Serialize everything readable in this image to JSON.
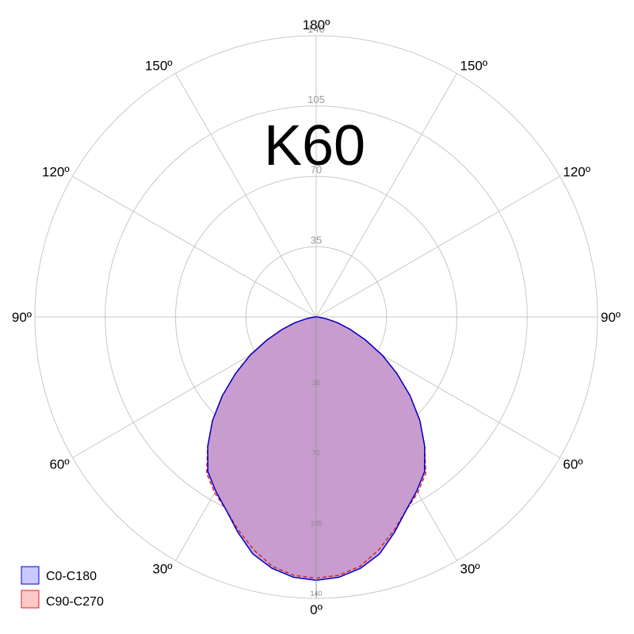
{
  "chart_data": {
    "type": "polar",
    "title": "K60",
    "rmax": 140,
    "rings": [
      35,
      70,
      105,
      140
    ],
    "angle_labels_top": [
      "180º",
      "150º",
      "150º",
      "120º",
      "120º",
      "90º",
      "90º"
    ],
    "angle_labels_bottom": [
      "60º",
      "60º",
      "30º",
      "30º",
      "0º"
    ],
    "angles_deg": [
      0,
      5,
      10,
      15,
      20,
      25,
      30,
      35,
      40,
      45,
      50,
      55,
      60,
      65,
      70,
      75,
      80,
      85,
      90
    ],
    "series": [
      {
        "name": "C0-C180",
        "color": "#0000cc",
        "fill": "#c9c9ff",
        "values": [
          131,
          130,
          127,
          122,
          114,
          106,
          100,
          94,
          84,
          73,
          61,
          49,
          38,
          27,
          18,
          11,
          5,
          1.5,
          0
        ]
      },
      {
        "name": "C90-C270",
        "color": "#dd2222",
        "fill": "#ffc9c9",
        "values": [
          130,
          129,
          126,
          120,
          113,
          106,
          101,
          95,
          84,
          73,
          61,
          49,
          38,
          27,
          18,
          11,
          5,
          1.5,
          0
        ]
      }
    ],
    "grid": true,
    "legend_position": "bottom-left"
  }
}
